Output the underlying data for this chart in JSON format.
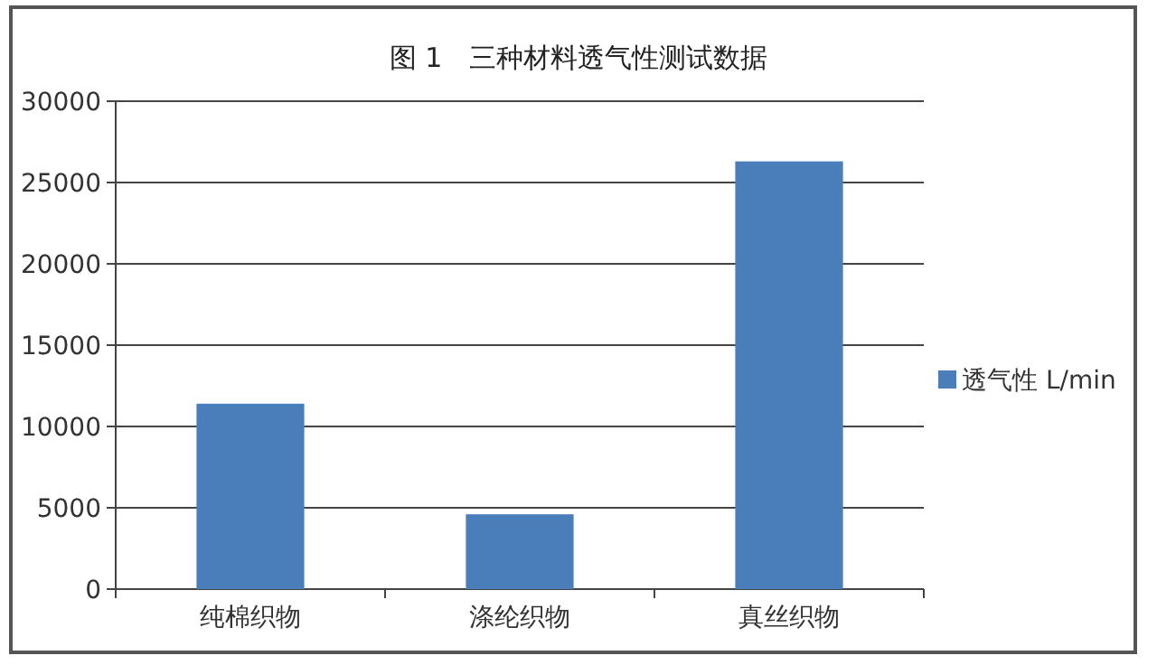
{
  "chart_data": {
    "type": "bar",
    "title": "图 1　三种材料透气性测试数据",
    "categories": [
      "纯棉织物",
      "涤纶织物",
      "真丝织物"
    ],
    "series": [
      {
        "name": "透气性 L/min",
        "color": "#4a7ebb",
        "values": [
          11400,
          4600,
          26300
        ]
      }
    ],
    "ylim": [
      0,
      30000
    ],
    "yticks": [
      0,
      5000,
      10000,
      15000,
      20000,
      25000,
      30000
    ],
    "grid": "y",
    "legend": "right"
  }
}
